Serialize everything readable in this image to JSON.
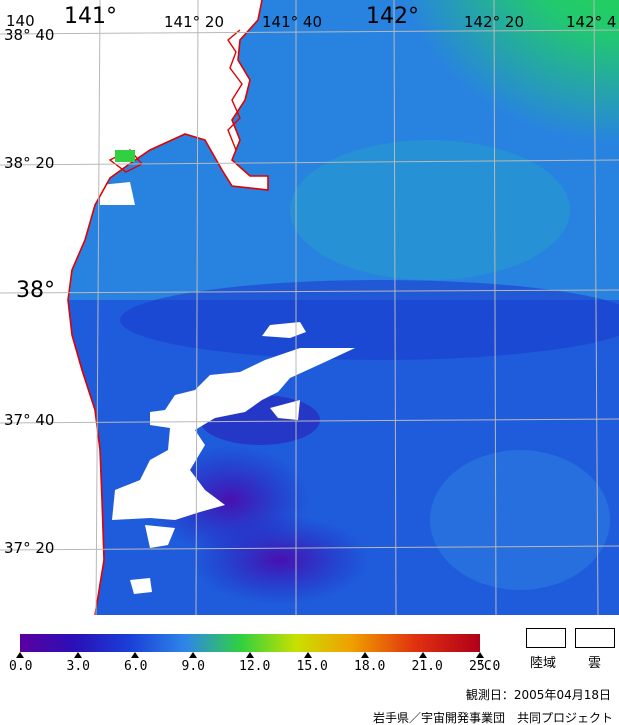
{
  "map": {
    "lon_labels": [
      "140",
      "141°",
      "141° 20",
      "141° 40",
      "142°",
      "142° 20",
      "142° 4"
    ],
    "lat_labels": [
      "38° 40",
      "38° 20",
      "38°",
      "37° 40",
      "37° 20"
    ]
  },
  "legend": {
    "ticks": [
      "0.0",
      "3.0",
      "6.0",
      "9.0",
      "12.0",
      "15.0",
      "18.0",
      "21.0",
      "25.0"
    ],
    "unit": "°C",
    "land_label": "陸域",
    "cloud_label": "雲",
    "colors": {
      "land": "#ffffff",
      "cloud": "#ffffff",
      "coast": "#e00000",
      "grid": "#b8b8b8"
    }
  },
  "observation_date": "観測日：2005年04月18日",
  "credit": "岩手県／宇宙開発事業団　共同プロジェクト"
}
